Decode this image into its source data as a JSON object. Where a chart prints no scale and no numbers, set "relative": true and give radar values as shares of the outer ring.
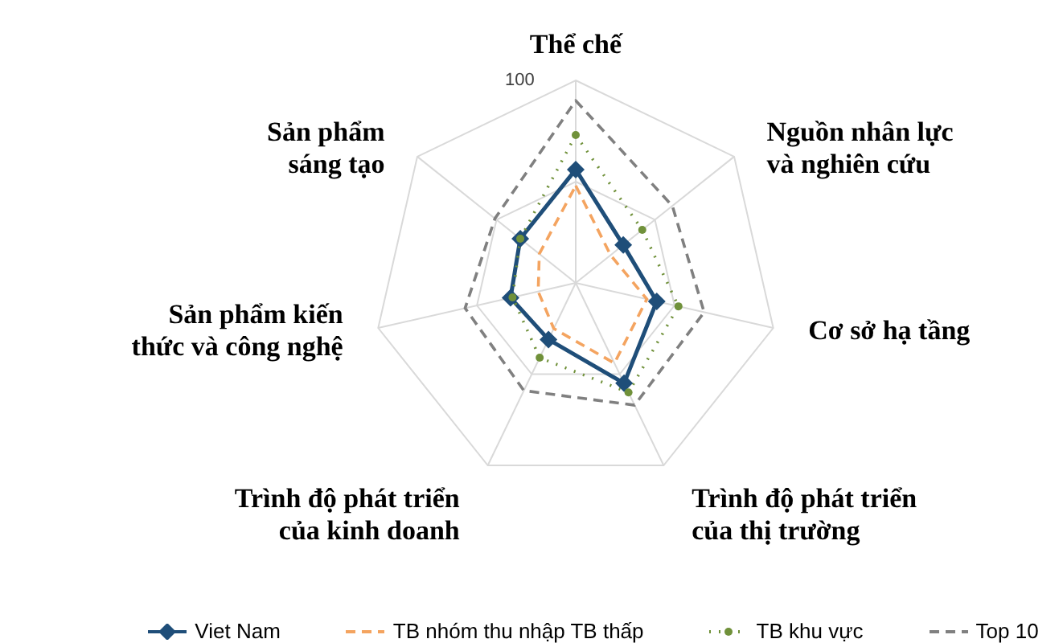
{
  "chart_data": {
    "type": "radar",
    "relative": true,
    "grid": true,
    "legend": "bottom",
    "annotations": [
      "100"
    ],
    "categories": [
      "Thể chế",
      "Nguồn nhân lực và nghiên cứu",
      "Cơ sở hạ tầng",
      "Trình độ phát triển của thị trường",
      "Trình độ phát triển của kinh doanh",
      "Sản phẩm kiến thức và công nghệ",
      "Sản phẩm sáng tạo"
    ],
    "series": [
      {
        "name": "Viet Nam",
        "color": "#1f4e79",
        "marker": "diamond",
        "line_style": "solid",
        "values": [
          0.56,
          0.3,
          0.41,
          0.55,
          0.31,
          0.33,
          0.35
        ]
      },
      {
        "name": "TB nhóm thu nhập TB thấp",
        "color": "#f4a460",
        "marker": "none",
        "line_style": "dashed",
        "values": [
          0.48,
          0.22,
          0.36,
          0.44,
          0.25,
          0.19,
          0.23
        ]
      },
      {
        "name": "TB khu vực",
        "color": "#70913a",
        "marker": "circle",
        "line_style": "dotted",
        "values": [
          0.73,
          0.42,
          0.52,
          0.6,
          0.41,
          0.32,
          0.35
        ]
      },
      {
        "name": "Top 10",
        "color": "#808080",
        "marker": "none",
        "line_style": "dashed",
        "values": [
          0.9,
          0.61,
          0.65,
          0.67,
          0.59,
          0.56,
          0.51
        ]
      }
    ]
  }
}
